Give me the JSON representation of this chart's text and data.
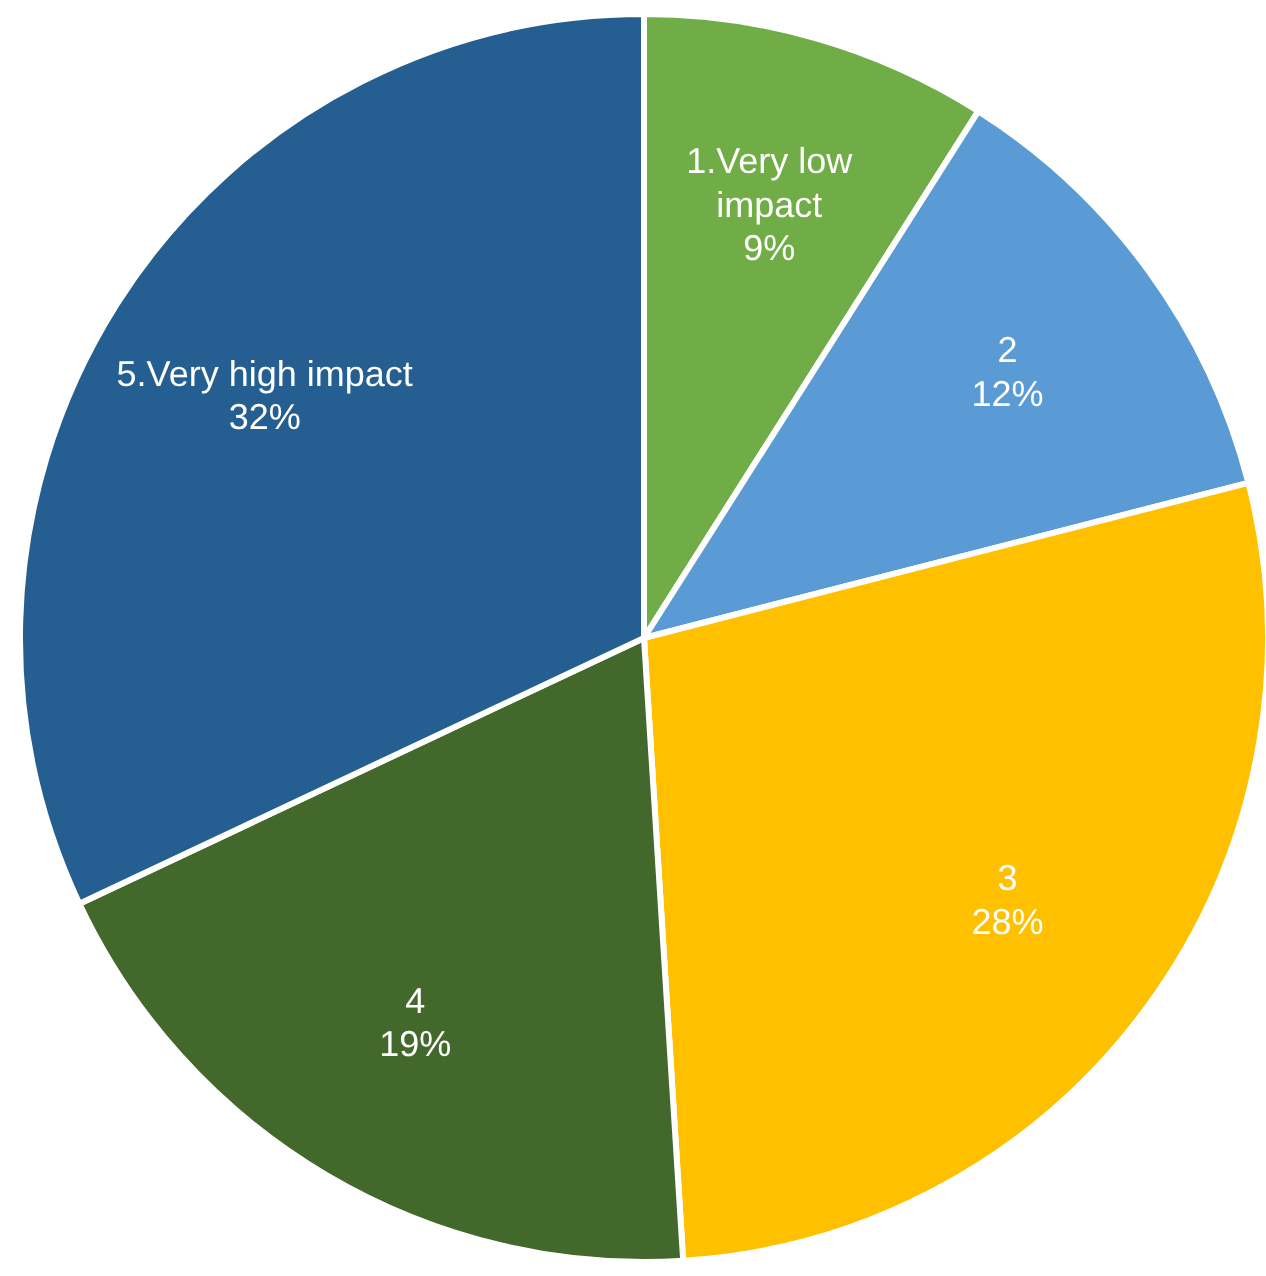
{
  "chart_data": {
    "type": "pie",
    "categories": [
      "1.Very low impact",
      "2",
      "3",
      "4",
      "5.Very high impact"
    ],
    "values": [
      9,
      12,
      28,
      19,
      32
    ],
    "colors": [
      "#70ad47",
      "#5b9bd5",
      "#ffc000",
      "#43682b",
      "#255e91"
    ],
    "value_labels": [
      "9%",
      "12%",
      "28%",
      "19%",
      "32%"
    ]
  }
}
